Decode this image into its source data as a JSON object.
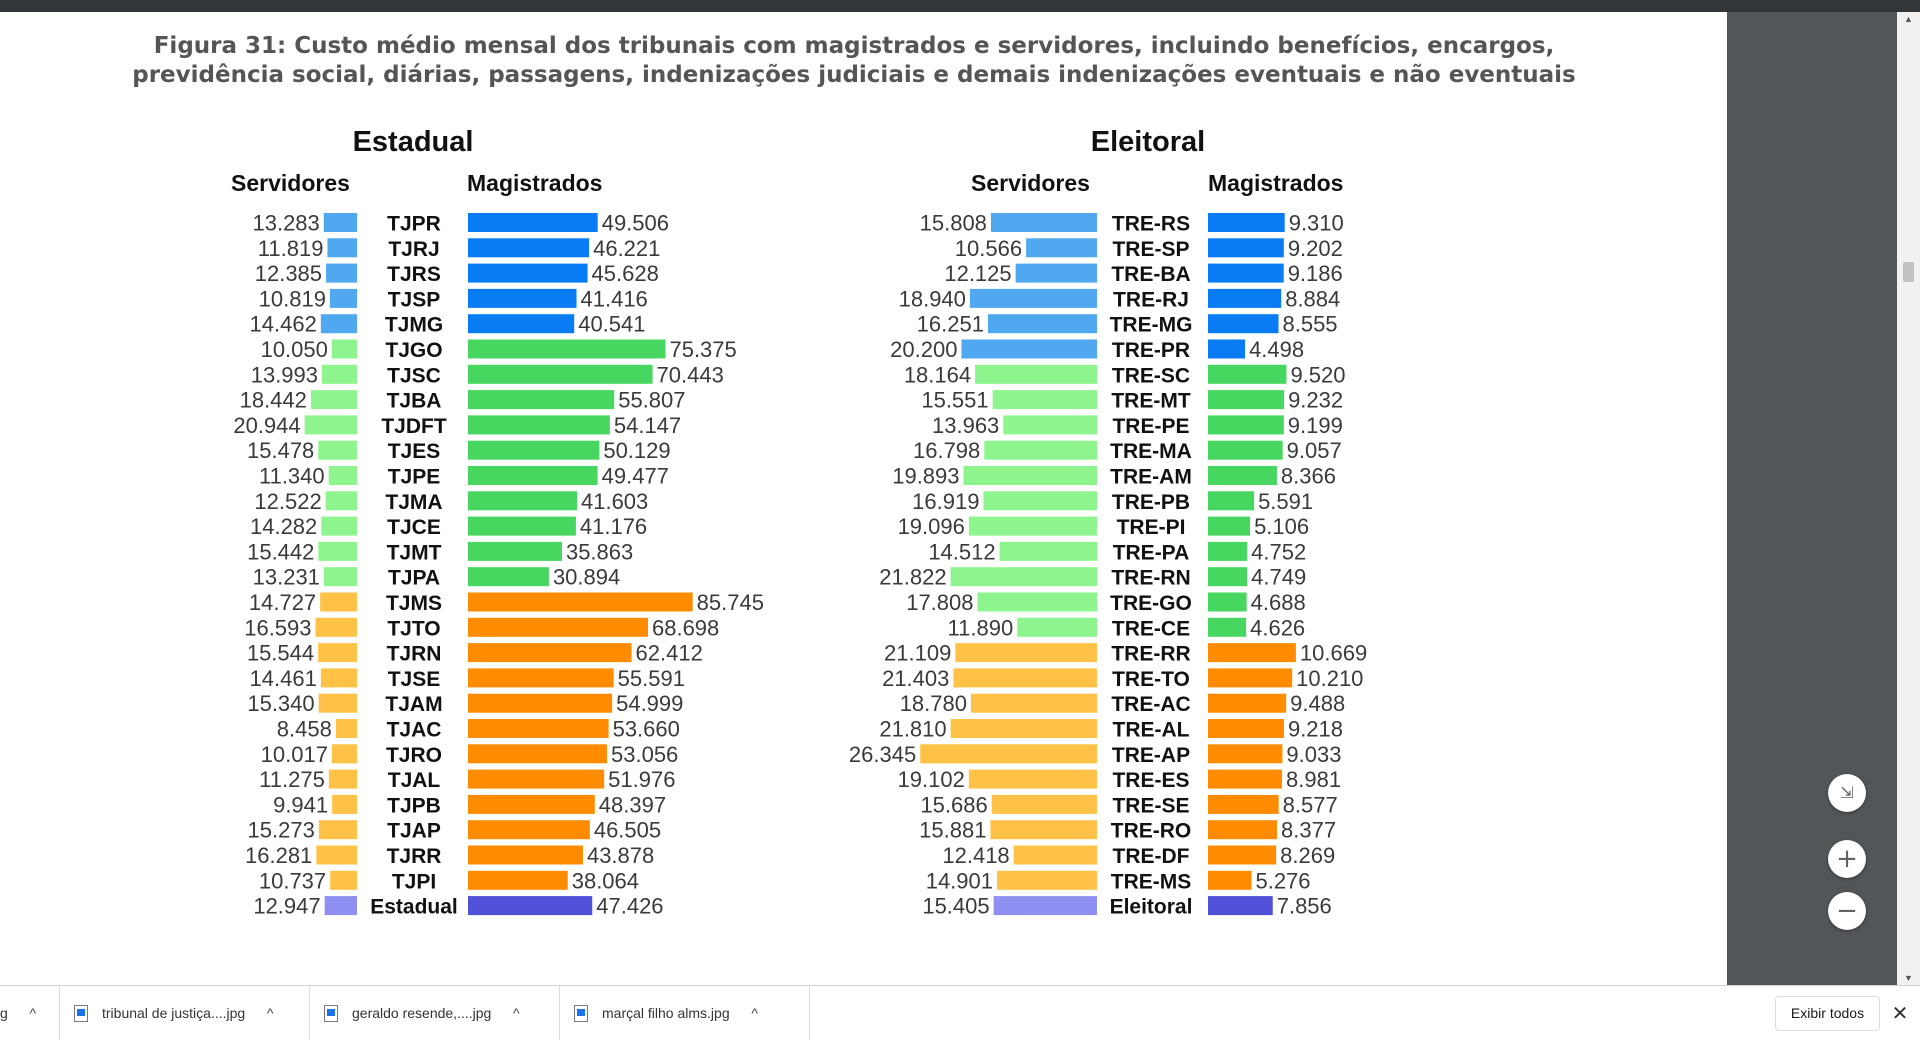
{
  "figure_title_line1": "Figura 31: Custo médio mensal dos tribunais com magistrados e servidores, incluindo benefícios, encargos,",
  "figure_title_line2": "previdência social, diárias, passagens, indenizações judiciais e demais indenizações eventuais e não eventuais",
  "colors": {
    "blue_servidores": "#4fa8f0",
    "blue_magistrados": "#0a7cf3",
    "green_servidores": "#8ef58e",
    "green_magistrados": "#47d65f",
    "orange_servidores": "#ffc247",
    "orange_magistrados": "#ff8c00",
    "total_servidores": "#8f8ff2",
    "total_magistrados": "#5050d8"
  },
  "chart_data": [
    {
      "type": "bar",
      "title": "Estadual",
      "left_header": "Servidores",
      "right_header": "Magistrados",
      "rows": [
        {
          "label": "TJPR",
          "group": "blue",
          "servidores": 13283,
          "servidores_text": "13.283",
          "magistrados": 49506,
          "magistrados_text": "49.506"
        },
        {
          "label": "TJRJ",
          "group": "blue",
          "servidores": 11819,
          "servidores_text": "11.819",
          "magistrados": 46221,
          "magistrados_text": "46.221"
        },
        {
          "label": "TJRS",
          "group": "blue",
          "servidores": 12385,
          "servidores_text": "12.385",
          "magistrados": 45628,
          "magistrados_text": "45.628"
        },
        {
          "label": "TJSP",
          "group": "blue",
          "servidores": 10819,
          "servidores_text": "10.819",
          "magistrados": 41416,
          "magistrados_text": "41.416"
        },
        {
          "label": "TJMG",
          "group": "blue",
          "servidores": 14462,
          "servidores_text": "14.462",
          "magistrados": 40541,
          "magistrados_text": "40.541"
        },
        {
          "label": "TJGO",
          "group": "green",
          "servidores": 10050,
          "servidores_text": "10.050",
          "magistrados": 75375,
          "magistrados_text": "75.375"
        },
        {
          "label": "TJSC",
          "group": "green",
          "servidores": 13993,
          "servidores_text": "13.993",
          "magistrados": 70443,
          "magistrados_text": "70.443"
        },
        {
          "label": "TJBA",
          "group": "green",
          "servidores": 18442,
          "servidores_text": "18.442",
          "magistrados": 55807,
          "magistrados_text": "55.807"
        },
        {
          "label": "TJDFT",
          "group": "green",
          "servidores": 20944,
          "servidores_text": "20.944",
          "magistrados": 54147,
          "magistrados_text": "54.147"
        },
        {
          "label": "TJES",
          "group": "green",
          "servidores": 15478,
          "servidores_text": "15.478",
          "magistrados": 50129,
          "magistrados_text": "50.129"
        },
        {
          "label": "TJPE",
          "group": "green",
          "servidores": 11340,
          "servidores_text": "11.340",
          "magistrados": 49477,
          "magistrados_text": "49.477"
        },
        {
          "label": "TJMA",
          "group": "green",
          "servidores": 12522,
          "servidores_text": "12.522",
          "magistrados": 41603,
          "magistrados_text": "41.603"
        },
        {
          "label": "TJCE",
          "group": "green",
          "servidores": 14282,
          "servidores_text": "14.282",
          "magistrados": 41176,
          "magistrados_text": "41.176"
        },
        {
          "label": "TJMT",
          "group": "green",
          "servidores": 15442,
          "servidores_text": "15.442",
          "magistrados": 35863,
          "magistrados_text": "35.863"
        },
        {
          "label": "TJPA",
          "group": "green",
          "servidores": 13231,
          "servidores_text": "13.231",
          "magistrados": 30894,
          "magistrados_text": "30.894"
        },
        {
          "label": "TJMS",
          "group": "orange",
          "servidores": 14727,
          "servidores_text": "14.727",
          "magistrados": 85745,
          "magistrados_text": "85.745"
        },
        {
          "label": "TJTO",
          "group": "orange",
          "servidores": 16593,
          "servidores_text": "16.593",
          "magistrados": 68698,
          "magistrados_text": "68.698"
        },
        {
          "label": "TJRN",
          "group": "orange",
          "servidores": 15544,
          "servidores_text": "15.544",
          "magistrados": 62412,
          "magistrados_text": "62.412"
        },
        {
          "label": "TJSE",
          "group": "orange",
          "servidores": 14461,
          "servidores_text": "14.461",
          "magistrados": 55591,
          "magistrados_text": "55.591"
        },
        {
          "label": "TJAM",
          "group": "orange",
          "servidores": 15340,
          "servidores_text": "15.340",
          "magistrados": 54999,
          "magistrados_text": "54.999"
        },
        {
          "label": "TJAC",
          "group": "orange",
          "servidores": 8458,
          "servidores_text": "8.458",
          "magistrados": 53660,
          "magistrados_text": "53.660"
        },
        {
          "label": "TJRO",
          "group": "orange",
          "servidores": 10017,
          "servidores_text": "10.017",
          "magistrados": 53056,
          "magistrados_text": "53.056"
        },
        {
          "label": "TJAL",
          "group": "orange",
          "servidores": 11275,
          "servidores_text": "11.275",
          "magistrados": 51976,
          "magistrados_text": "51.976"
        },
        {
          "label": "TJPB",
          "group": "orange",
          "servidores": 9941,
          "servidores_text": "9.941",
          "magistrados": 48397,
          "magistrados_text": "48.397"
        },
        {
          "label": "TJAP",
          "group": "orange",
          "servidores": 15273,
          "servidores_text": "15.273",
          "magistrados": 46505,
          "magistrados_text": "46.505"
        },
        {
          "label": "TJRR",
          "group": "orange",
          "servidores": 16281,
          "servidores_text": "16.281",
          "magistrados": 43878,
          "magistrados_text": "43.878"
        },
        {
          "label": "TJPI",
          "group": "orange",
          "servidores": 10737,
          "servidores_text": "10.737",
          "magistrados": 38064,
          "magistrados_text": "38.064"
        },
        {
          "label": "Estadual",
          "group": "total",
          "servidores": 12947,
          "servidores_text": "12.947",
          "magistrados": 47426,
          "magistrados_text": "47.426"
        }
      ]
    },
    {
      "type": "bar",
      "title": "Eleitoral",
      "left_header": "Servidores",
      "right_header": "Magistrados",
      "rows": [
        {
          "label": "TRE-RS",
          "group": "blue",
          "servidores": 15808,
          "servidores_text": "15.808",
          "magistrados": 9310,
          "magistrados_text": "9.310"
        },
        {
          "label": "TRE-SP",
          "group": "blue",
          "servidores": 10566,
          "servidores_text": "10.566",
          "magistrados": 9202,
          "magistrados_text": "9.202"
        },
        {
          "label": "TRE-BA",
          "group": "blue",
          "servidores": 12125,
          "servidores_text": "12.125",
          "magistrados": 9186,
          "magistrados_text": "9.186"
        },
        {
          "label": "TRE-RJ",
          "group": "blue",
          "servidores": 18940,
          "servidores_text": "18.940",
          "magistrados": 8884,
          "magistrados_text": "8.884"
        },
        {
          "label": "TRE-MG",
          "group": "blue",
          "servidores": 16251,
          "servidores_text": "16.251",
          "magistrados": 8555,
          "magistrados_text": "8.555"
        },
        {
          "label": "TRE-PR",
          "group": "blue",
          "servidores": 20200,
          "servidores_text": "20.200",
          "magistrados": 4498,
          "magistrados_text": "4.498"
        },
        {
          "label": "TRE-SC",
          "group": "green",
          "servidores": 18164,
          "servidores_text": "18.164",
          "magistrados": 9520,
          "magistrados_text": "9.520"
        },
        {
          "label": "TRE-MT",
          "group": "green",
          "servidores": 15551,
          "servidores_text": "15.551",
          "magistrados": 9232,
          "magistrados_text": "9.232"
        },
        {
          "label": "TRE-PE",
          "group": "green",
          "servidores": 13963,
          "servidores_text": "13.963",
          "magistrados": 9199,
          "magistrados_text": "9.199"
        },
        {
          "label": "TRE-MA",
          "group": "green",
          "servidores": 16798,
          "servidores_text": "16.798",
          "magistrados": 9057,
          "magistrados_text": "9.057"
        },
        {
          "label": "TRE-AM",
          "group": "green",
          "servidores": 19893,
          "servidores_text": "19.893",
          "magistrados": 8366,
          "magistrados_text": "8.366"
        },
        {
          "label": "TRE-PB",
          "group": "green",
          "servidores": 16919,
          "servidores_text": "16.919",
          "magistrados": 5591,
          "magistrados_text": "5.591"
        },
        {
          "label": "TRE-PI",
          "group": "green",
          "servidores": 19096,
          "servidores_text": "19.096",
          "magistrados": 5106,
          "magistrados_text": "5.106"
        },
        {
          "label": "TRE-PA",
          "group": "green",
          "servidores": 14512,
          "servidores_text": "14.512",
          "magistrados": 4752,
          "magistrados_text": "4.752"
        },
        {
          "label": "TRE-RN",
          "group": "green",
          "servidores": 21822,
          "servidores_text": "21.822",
          "magistrados": 4749,
          "magistrados_text": "4.749"
        },
        {
          "label": "TRE-GO",
          "group": "green",
          "servidores": 17808,
          "servidores_text": "17.808",
          "magistrados": 4688,
          "magistrados_text": "4.688"
        },
        {
          "label": "TRE-CE",
          "group": "green",
          "servidores": 11890,
          "servidores_text": "11.890",
          "magistrados": 4626,
          "magistrados_text": "4.626"
        },
        {
          "label": "TRE-RR",
          "group": "orange",
          "servidores": 21109,
          "servidores_text": "21.109",
          "magistrados": 10669,
          "magistrados_text": "10.669"
        },
        {
          "label": "TRE-TO",
          "group": "orange",
          "servidores": 21403,
          "servidores_text": "21.403",
          "magistrados": 10210,
          "magistrados_text": "10.210"
        },
        {
          "label": "TRE-AC",
          "group": "orange",
          "servidores": 18780,
          "servidores_text": "18.780",
          "magistrados": 9488,
          "magistrados_text": "9.488"
        },
        {
          "label": "TRE-AL",
          "group": "orange",
          "servidores": 21810,
          "servidores_text": "21.810",
          "magistrados": 9218,
          "magistrados_text": "9.218"
        },
        {
          "label": "TRE-AP",
          "group": "orange",
          "servidores": 26345,
          "servidores_text": "26.345",
          "magistrados": 9033,
          "magistrados_text": "9.033"
        },
        {
          "label": "TRE-ES",
          "group": "orange",
          "servidores": 19102,
          "servidores_text": "19.102",
          "magistrados": 8981,
          "magistrados_text": "8.981"
        },
        {
          "label": "TRE-SE",
          "group": "orange",
          "servidores": 15686,
          "servidores_text": "15.686",
          "magistrados": 8577,
          "magistrados_text": "8.577"
        },
        {
          "label": "TRE-RO",
          "group": "orange",
          "servidores": 15881,
          "servidores_text": "15.881",
          "magistrados": 8377,
          "magistrados_text": "8.377"
        },
        {
          "label": "TRE-DF",
          "group": "orange",
          "servidores": 12418,
          "servidores_text": "12.418",
          "magistrados": 8269,
          "magistrados_text": "8.269"
        },
        {
          "label": "TRE-MS",
          "group": "orange",
          "servidores": 14901,
          "servidores_text": "14.901",
          "magistrados": 5276,
          "magistrados_text": "5.276"
        },
        {
          "label": "Eleitoral",
          "group": "total",
          "servidores": 15405,
          "servidores_text": "15.405",
          "magistrados": 7856,
          "magistrados_text": "7.856"
        }
      ]
    }
  ],
  "viewer_controls": {
    "fit_icon": "fit-to-page-icon",
    "zoom_in": "+",
    "zoom_out": "−"
  },
  "downloads": {
    "items": [
      {
        "name": "g"
      },
      {
        "name": "tribunal de justiça....jpg"
      },
      {
        "name": "geraldo resende,....jpg"
      },
      {
        "name": "marçal filho alms.jpg"
      }
    ],
    "show_all_label": "Exibir todos",
    "close_icon": "close-icon"
  }
}
